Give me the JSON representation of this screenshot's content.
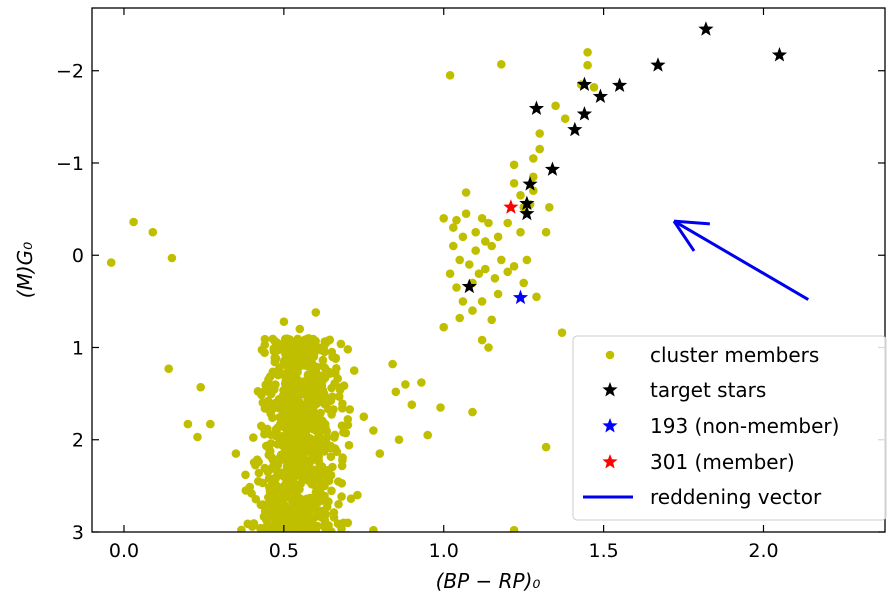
{
  "chart_data": {
    "type": "scatter",
    "xlabel": "(BP − RP)₀",
    "ylabel": "(M)G₀",
    "xlim": [
      -0.1,
      2.38
    ],
    "ylim": [
      3.0,
      -2.68
    ],
    "y_inverted": true,
    "x_ticks": [
      "0.0",
      "0.5",
      "1.0",
      "1.5",
      "2.0"
    ],
    "y_ticks": [
      "−2",
      "−1",
      "0",
      "1",
      "2",
      "3"
    ],
    "x_tick_values": [
      0.0,
      0.5,
      1.0,
      1.5,
      2.0
    ],
    "y_tick_values": [
      -2,
      -1,
      0,
      1,
      2,
      3
    ],
    "legend_position": "bottom-right",
    "series": [
      {
        "name": "cluster members",
        "marker": "circle",
        "color": "#bfbf00",
        "points": [
          [
            -0.04,
            0.08
          ],
          [
            0.03,
            -0.36
          ],
          [
            0.09,
            -0.25
          ],
          [
            0.15,
            0.03
          ],
          [
            0.14,
            1.23
          ],
          [
            0.24,
            1.43
          ],
          [
            0.2,
            1.83
          ],
          [
            0.23,
            1.97
          ],
          [
            0.27,
            1.83
          ],
          [
            0.35,
            2.15
          ],
          [
            0.38,
            2.38
          ],
          [
            0.42,
            2.45
          ],
          [
            0.45,
            2.35
          ],
          [
            0.5,
            0.72
          ],
          [
            0.55,
            0.8
          ],
          [
            0.6,
            0.62
          ],
          [
            0.48,
            0.95
          ],
          [
            0.65,
            1.05
          ],
          [
            0.7,
            1.02
          ],
          [
            0.72,
            1.25
          ],
          [
            0.75,
            1.75
          ],
          [
            0.78,
            1.9
          ],
          [
            0.8,
            2.15
          ],
          [
            0.73,
            2.6
          ],
          [
            0.7,
            2.9
          ],
          [
            0.78,
            2.98
          ],
          [
            0.84,
            1.18
          ],
          [
            0.85,
            1.48
          ],
          [
            0.88,
            1.4
          ],
          [
            0.93,
            1.38
          ],
          [
            0.9,
            1.62
          ],
          [
            0.99,
            1.65
          ],
          [
            0.95,
            1.95
          ],
          [
            0.86,
            2.0
          ],
          [
            1.02,
            -1.95
          ],
          [
            1.18,
            -2.07
          ],
          [
            1.07,
            -0.68
          ],
          [
            1.07,
            -0.45
          ],
          [
            1.0,
            -0.4
          ],
          [
            1.04,
            -0.38
          ],
          [
            1.12,
            -0.4
          ],
          [
            1.14,
            -0.35
          ],
          [
            1.2,
            -0.35
          ],
          [
            1.15,
            -0.1
          ],
          [
            1.18,
            0.05
          ],
          [
            1.12,
            0.5
          ],
          [
            1.05,
            0.68
          ],
          [
            1.0,
            0.78
          ],
          [
            1.12,
            0.92
          ],
          [
            1.14,
            1.0
          ],
          [
            1.2,
            0.18
          ],
          [
            1.22,
            0.12
          ],
          [
            1.26,
            0.05
          ],
          [
            1.29,
            0.45
          ],
          [
            1.25,
            0.3
          ],
          [
            1.09,
            1.7
          ],
          [
            1.22,
            -0.78
          ],
          [
            1.22,
            -0.98
          ],
          [
            1.24,
            -0.65
          ],
          [
            1.25,
            -0.52
          ],
          [
            1.27,
            -0.55
          ],
          [
            1.28,
            -0.7
          ],
          [
            1.28,
            -0.85
          ],
          [
            1.3,
            -1.15
          ],
          [
            1.32,
            -0.25
          ],
          [
            1.33,
            -0.52
          ],
          [
            1.3,
            -1.32
          ],
          [
            1.28,
            -1.05
          ],
          [
            1.24,
            -0.25
          ],
          [
            1.35,
            -1.62
          ],
          [
            1.38,
            -1.48
          ],
          [
            1.43,
            -1.85
          ],
          [
            1.45,
            -2.06
          ],
          [
            1.45,
            -2.2
          ],
          [
            1.47,
            -1.82
          ],
          [
            1.37,
            0.84
          ],
          [
            1.32,
            2.08
          ],
          [
            1.22,
            2.98
          ],
          [
            1.03,
            -0.1
          ],
          [
            1.05,
            0.05
          ],
          [
            1.06,
            -0.2
          ],
          [
            1.08,
            0.1
          ],
          [
            1.1,
            -0.05
          ],
          [
            1.11,
            0.2
          ],
          [
            1.09,
            0.3
          ],
          [
            1.04,
            0.35
          ],
          [
            1.02,
            0.2
          ],
          [
            1.13,
            0.15
          ],
          [
            1.16,
            0.25
          ],
          [
            1.17,
            0.42
          ],
          [
            1.09,
            0.6
          ],
          [
            1.06,
            0.5
          ],
          [
            1.15,
            0.7
          ],
          [
            1.03,
            -0.3
          ],
          [
            1.1,
            -0.25
          ],
          [
            1.17,
            -0.2
          ],
          [
            1.13,
            -0.15
          ]
        ]
      },
      {
        "name": "target stars",
        "marker": "star",
        "color": "#000000",
        "points": [
          [
            1.08,
            0.34
          ],
          [
            1.26,
            -0.45
          ],
          [
            1.26,
            -0.56
          ],
          [
            1.27,
            -0.77
          ],
          [
            1.34,
            -0.93
          ],
          [
            1.41,
            -1.36
          ],
          [
            1.44,
            -1.53
          ],
          [
            1.29,
            -1.59
          ],
          [
            1.44,
            -1.85
          ],
          [
            1.49,
            -1.72
          ],
          [
            1.55,
            -1.84
          ],
          [
            1.67,
            -2.06
          ],
          [
            1.82,
            -2.45
          ],
          [
            2.05,
            -2.17
          ]
        ]
      },
      {
        "name": "193 (non-member)",
        "marker": "star",
        "color": "#0000ff",
        "points": [
          [
            1.24,
            0.46
          ]
        ]
      },
      {
        "name": "301 (member)",
        "marker": "star",
        "color": "#ff0000",
        "points": [
          [
            1.21,
            -0.52
          ]
        ]
      },
      {
        "name": "reddening vector",
        "marker": "line",
        "color": "#0000ee",
        "from": [
          2.14,
          0.48
        ],
        "to": [
          1.72,
          -0.37
        ]
      }
    ],
    "main_sequence_core": {
      "series": "cluster members",
      "description": "dense main-sequence clump",
      "x_center": 0.55,
      "x_spread": 0.13,
      "y_from": 0.9,
      "y_to": 3.0
    }
  }
}
